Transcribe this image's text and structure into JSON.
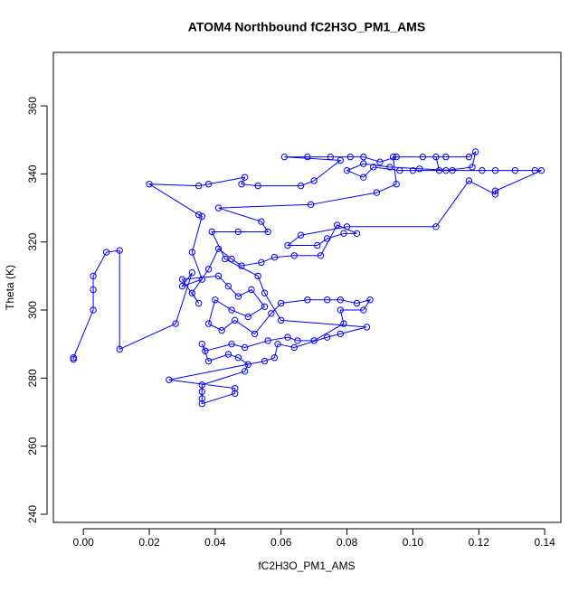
{
  "chart_data": {
    "type": "scatter",
    "title": "ATOM4 Northbound fC2H3O_PM1_AMS",
    "x_label": "fC2H3O_PM1_AMS",
    "y_label": "Theta (K)",
    "color": "#0000ff",
    "xlim": [
      -0.0091,
      0.1449
    ],
    "ylim": [
      237.6,
      375.7
    ],
    "xticks": [
      {
        "value": 0,
        "label": "0.00"
      },
      0.02,
      0.04,
      0.06,
      0.08,
      {
        "value": 0.1,
        "label": "0.10"
      },
      0.12,
      0.14
    ],
    "yticks": [
      240,
      260,
      280,
      300,
      320,
      340,
      360
    ],
    "x": [
      -0.003,
      -0.003,
      0.003,
      0.003,
      0.003,
      0.007,
      0.011,
      0.011,
      0.028,
      0.033,
      0.03,
      0.036,
      0.033,
      0.036,
      0.035,
      0.02,
      0.035,
      0.038,
      0.049,
      0.048,
      0.053,
      0.066,
      0.07,
      0.078,
      0.061,
      0.068,
      0.075,
      0.081,
      0.085,
      0.09,
      0.095,
      0.103,
      0.11,
      0.117,
      0.119,
      0.118,
      0.11,
      0.1,
      0.096,
      0.088,
      0.085,
      0.08,
      0.085,
      0.093,
      0.102,
      0.112,
      0.121,
      0.125,
      0.131,
      0.137,
      0.139,
      0.125,
      0.125,
      0.117,
      0.107,
      0.08,
      0.066,
      0.062,
      0.071,
      0.074,
      0.079,
      0.083,
      0.077,
      0.072,
      0.064,
      0.058,
      0.054,
      0.048,
      0.045,
      0.041,
      0.038,
      0.033,
      0.035,
      0.03,
      0.041,
      0.044,
      0.047,
      0.051,
      0.055,
      0.05,
      0.045,
      0.04,
      0.038,
      0.042,
      0.046,
      0.052,
      0.057,
      0.06,
      0.068,
      0.074,
      0.078,
      0.083,
      0.087,
      0.085,
      0.078,
      0.079,
      0.07,
      0.065,
      0.062,
      0.056,
      0.049,
      0.045,
      0.037,
      0.036,
      0.038,
      0.044,
      0.047,
      0.05,
      0.049,
      0.036,
      0.036,
      0.036,
      0.036,
      0.046,
      0.046,
      0.026,
      0.055,
      0.058,
      0.059,
      0.064,
      0.074,
      0.078,
      0.086,
      0.06,
      0.055,
      0.053,
      0.043,
      0.039,
      0.047,
      0.056,
      0.054,
      0.041,
      0.069,
      0.089,
      0.095,
      0.094,
      0.107,
      0.108
    ],
    "values": [
      285.5,
      286,
      300,
      306,
      310,
      317,
      317.5,
      288.5,
      296,
      311,
      307,
      309,
      317,
      327.5,
      328,
      337,
      336.5,
      337,
      339,
      337,
      336.5,
      336.5,
      338,
      344,
      345,
      345,
      345,
      345,
      345,
      343.5,
      345,
      345,
      345,
      345,
      346.5,
      342,
      341,
      341,
      341,
      342,
      339,
      341,
      343,
      342,
      341.5,
      341,
      341,
      341,
      341,
      341,
      341,
      335,
      334,
      338,
      324.5,
      324.5,
      322,
      319,
      319,
      321,
      322.5,
      322.5,
      325,
      316,
      316,
      315.5,
      314,
      313,
      315,
      318,
      312,
      305,
      302,
      309,
      310,
      307,
      304,
      306,
      301,
      298,
      300,
      303,
      296,
      294,
      297,
      293,
      299,
      302,
      303,
      303,
      303,
      302,
      303,
      300,
      300,
      296,
      291,
      291,
      292,
      291,
      289,
      290,
      288,
      290,
      285,
      287,
      286,
      284,
      282,
      278,
      276,
      274,
      272.5,
      275.5,
      277,
      279.5,
      285,
      286,
      290,
      289,
      292,
      293,
      295,
      297,
      305,
      310,
      315,
      323,
      323,
      323,
      326,
      330,
      331,
      334.5,
      337,
      345,
      345,
      341
    ]
  }
}
